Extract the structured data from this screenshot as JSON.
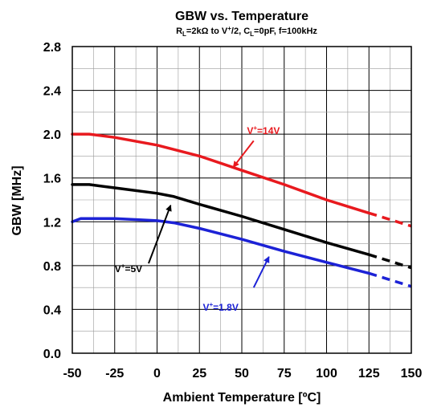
{
  "chart_data": {
    "type": "line",
    "title": "GBW vs. Temperature",
    "subtitle": {
      "r_letter": "R",
      "r_sub": "L",
      "r_rest": "=2kΩ to V",
      "r_sup": "+",
      "r_tail": "/2, C",
      "c_sub": "L",
      "c_rest": "=0pF, f=100kHz"
    },
    "xlabel": "Ambient Temperature [ºC]",
    "ylabel": "GBW [MHz]",
    "xlim": [
      -50,
      150
    ],
    "ylim": [
      0,
      2.8
    ],
    "xticks": [
      "-50",
      "-25",
      "0",
      "25",
      "50",
      "75",
      "100",
      "125",
      "150"
    ],
    "yticks": [
      "0.0",
      "0.4",
      "0.8",
      "1.2",
      "1.6",
      "2.0",
      "2.4",
      "2.8"
    ],
    "x_grid_step": 12.5,
    "y_grid_step": 0.2,
    "grid": true,
    "series": [
      {
        "name": "V+=14V",
        "label_main": "V",
        "label_sup": "+",
        "label_rest": "=14V",
        "color": "#e8191e",
        "x": [
          -50,
          -40,
          -25,
          0,
          25,
          50,
          75,
          100,
          125
        ],
        "y": [
          2.0,
          2.0,
          1.97,
          1.9,
          1.8,
          1.67,
          1.54,
          1.4,
          1.28
        ],
        "dashed_x": [
          125,
          150
        ],
        "dashed_y": [
          1.28,
          1.16
        ]
      },
      {
        "name": "V+=5V",
        "label_main": "V",
        "label_sup": "+",
        "label_rest": "=5V",
        "color": "#000000",
        "x": [
          -50,
          -40,
          -25,
          0,
          10,
          25,
          50,
          75,
          100,
          125
        ],
        "y": [
          1.54,
          1.54,
          1.51,
          1.46,
          1.43,
          1.36,
          1.25,
          1.13,
          1.01,
          0.9
        ],
        "dashed_x": [
          125,
          150
        ],
        "dashed_y": [
          0.9,
          0.78
        ]
      },
      {
        "name": "V+=1.8V",
        "label_main": "V",
        "label_sup": "+",
        "label_rest": "=1.8V",
        "color": "#1c22d6",
        "x": [
          -50,
          -45,
          -40,
          -25,
          0,
          10,
          25,
          50,
          75,
          100,
          125
        ],
        "y": [
          1.2,
          1.23,
          1.23,
          1.23,
          1.21,
          1.19,
          1.14,
          1.04,
          0.93,
          0.83,
          0.73
        ],
        "dashed_x": [
          125,
          150
        ],
        "dashed_y": [
          0.73,
          0.61
        ]
      }
    ],
    "annotations": [
      {
        "series": 0,
        "color": "#e8191e",
        "text_at": [
          53,
          2.0
        ],
        "arrow_from": [
          57,
          1.94
        ],
        "arrow_to": [
          45,
          1.7
        ]
      },
      {
        "series": 1,
        "color": "#000000",
        "text_at": [
          -25,
          0.74
        ],
        "arrow_from": [
          -5,
          0.82
        ],
        "arrow_to": [
          8,
          1.35
        ]
      },
      {
        "series": 2,
        "color": "#1c22d6",
        "text_at": [
          27,
          0.39
        ],
        "arrow_from": [
          57,
          0.6
        ],
        "arrow_to": [
          66,
          0.88
        ]
      }
    ]
  }
}
